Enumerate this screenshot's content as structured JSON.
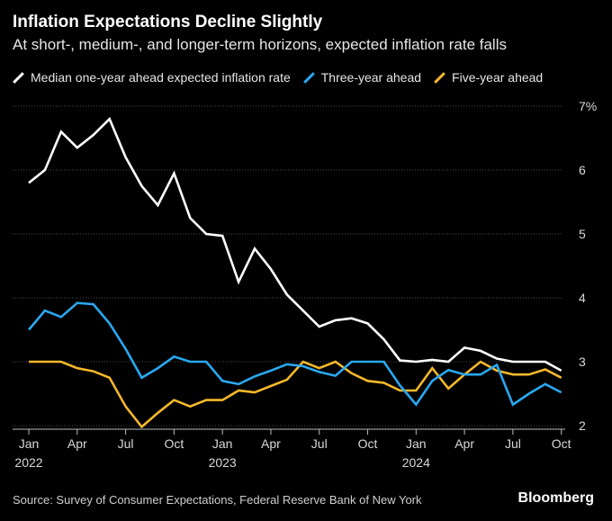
{
  "chart_data": {
    "type": "line",
    "title": "Inflation Expectations Decline Slightly",
    "subtitle": "At short-, medium-, and longer-term horizons, expected inflation rate falls",
    "ylim": [
      2,
      7
    ],
    "y_ticks": [
      "2",
      "3",
      "4",
      "5",
      "6",
      "7%"
    ],
    "x_ticks": [
      {
        "label": "Jan",
        "index": 0
      },
      {
        "label": "Apr",
        "index": 3
      },
      {
        "label": "Jul",
        "index": 6
      },
      {
        "label": "Oct",
        "index": 9
      },
      {
        "label": "Jan",
        "index": 12
      },
      {
        "label": "Apr",
        "index": 15
      },
      {
        "label": "Jul",
        "index": 18
      },
      {
        "label": "Oct",
        "index": 21
      },
      {
        "label": "Jan",
        "index": 24
      },
      {
        "label": "Apr",
        "index": 27
      },
      {
        "label": "Jul",
        "index": 30
      },
      {
        "label": "Oct",
        "index": 33
      }
    ],
    "year_labels": [
      {
        "label": "2022",
        "index": 0
      },
      {
        "label": "2023",
        "index": 12
      },
      {
        "label": "2024",
        "index": 24
      }
    ],
    "series": [
      {
        "name": "Median one-year ahead expected inflation rate",
        "color": "#ffffff",
        "values": [
          5.8,
          6.0,
          6.6,
          6.35,
          6.55,
          6.8,
          6.2,
          5.75,
          5.45,
          5.95,
          5.25,
          5.0,
          4.97,
          4.25,
          4.77,
          4.45,
          4.05,
          3.8,
          3.55,
          3.65,
          3.68,
          3.6,
          3.35,
          3.02,
          3.0,
          3.03,
          3.0,
          3.22,
          3.17,
          3.05,
          3.0,
          3.0,
          3.0,
          2.86
        ]
      },
      {
        "name": "Three-year ahead",
        "color": "#29a8f0",
        "values": [
          3.5,
          3.8,
          3.7,
          3.92,
          3.9,
          3.6,
          3.2,
          2.75,
          2.9,
          3.08,
          3.0,
          3.0,
          2.7,
          2.65,
          2.77,
          2.86,
          2.96,
          2.93,
          2.84,
          2.78,
          3.0,
          3.0,
          3.0,
          2.63,
          2.33,
          2.7,
          2.87,
          2.8,
          2.8,
          2.95,
          2.33,
          2.5,
          2.65,
          2.52
        ]
      },
      {
        "name": "Five-year ahead",
        "color": "#f5b82a",
        "values": [
          3.0,
          3.0,
          3.0,
          2.9,
          2.85,
          2.75,
          2.3,
          1.98,
          2.2,
          2.4,
          2.3,
          2.4,
          2.4,
          2.55,
          2.52,
          2.62,
          2.72,
          3.0,
          2.9,
          3.0,
          2.82,
          2.7,
          2.67,
          2.55,
          2.55,
          2.9,
          2.58,
          2.8,
          3.0,
          2.86,
          2.8,
          2.8,
          2.88,
          2.75
        ]
      }
    ]
  },
  "footer": {
    "source": "Source: Survey of Consumer Expectations, Federal Reserve Bank of New York",
    "brand": "Bloomberg"
  }
}
